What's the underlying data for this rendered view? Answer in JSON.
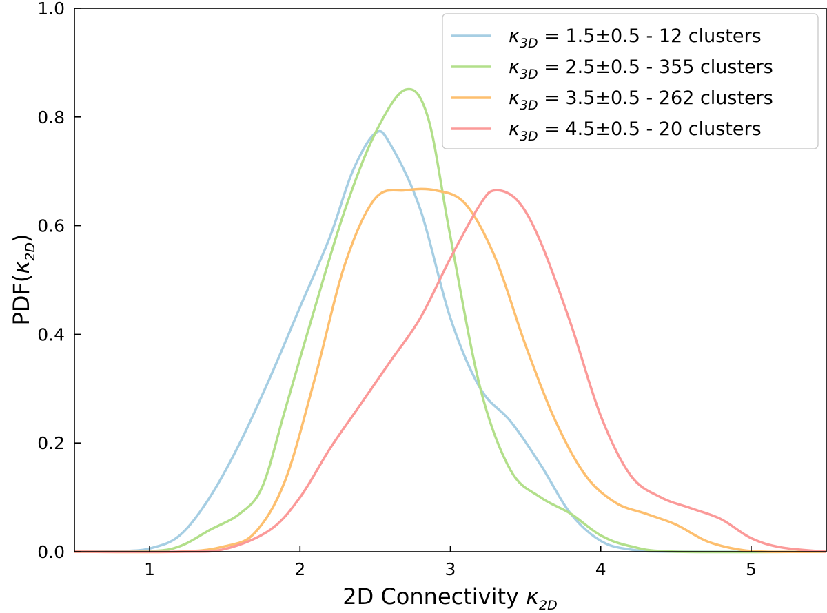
{
  "chart_data": {
    "type": "line",
    "xlabel": {
      "text": "2D Connectivity ",
      "symbol": "κ",
      "subscript": "2D"
    },
    "ylabel": {
      "text": "PDF(",
      "symbol": "κ",
      "subscript": "2D",
      "close": ")"
    },
    "xlim": [
      0.5,
      5.5
    ],
    "ylim": [
      0.0,
      1.0
    ],
    "x_ticks": [
      1,
      2,
      3,
      4,
      5
    ],
    "x_tick_labels": [
      "1",
      "2",
      "3",
      "4",
      "5"
    ],
    "y_ticks": [
      0.0,
      0.2,
      0.4,
      0.6,
      0.8,
      1.0
    ],
    "y_tick_labels": [
      "0.0",
      "0.2",
      "0.4",
      "0.6",
      "0.8",
      "1.0"
    ],
    "grid": false,
    "legend_position": "top-right",
    "series": [
      {
        "name": "κ3D = 1.5±0.5 - 12 clusters",
        "legend": {
          "symbol": "κ",
          "subscript": "3D",
          "text": " = 1.5±0.5 - 12 clusters"
        },
        "color": "#a6cee3",
        "points": [
          [
            0.5,
            0
          ],
          [
            0.8,
            0.001
          ],
          [
            1.0,
            0.006
          ],
          [
            1.2,
            0.03
          ],
          [
            1.4,
            0.1
          ],
          [
            1.6,
            0.2
          ],
          [
            1.8,
            0.32
          ],
          [
            2.0,
            0.45
          ],
          [
            2.2,
            0.58
          ],
          [
            2.35,
            0.7
          ],
          [
            2.5,
            0.77
          ],
          [
            2.6,
            0.75
          ],
          [
            2.8,
            0.63
          ],
          [
            3.0,
            0.43
          ],
          [
            3.2,
            0.3
          ],
          [
            3.4,
            0.24
          ],
          [
            3.6,
            0.16
          ],
          [
            3.8,
            0.07
          ],
          [
            4.0,
            0.02
          ],
          [
            4.2,
            0.004
          ],
          [
            4.5,
            0.0
          ],
          [
            5.5,
            0.0
          ]
        ]
      },
      {
        "name": "κ3D = 2.5±0.5 - 355 clusters",
        "legend": {
          "symbol": "κ",
          "subscript": "3D",
          "text": " = 2.5±0.5 - 355 clusters"
        },
        "color": "#b2df8a",
        "points": [
          [
            0.5,
            0
          ],
          [
            1.0,
            0.001
          ],
          [
            1.2,
            0.01
          ],
          [
            1.4,
            0.04
          ],
          [
            1.6,
            0.07
          ],
          [
            1.75,
            0.12
          ],
          [
            1.9,
            0.26
          ],
          [
            2.1,
            0.45
          ],
          [
            2.3,
            0.63
          ],
          [
            2.5,
            0.77
          ],
          [
            2.7,
            0.85
          ],
          [
            2.85,
            0.8
          ],
          [
            3.0,
            0.58
          ],
          [
            3.2,
            0.3
          ],
          [
            3.4,
            0.15
          ],
          [
            3.6,
            0.1
          ],
          [
            3.8,
            0.07
          ],
          [
            4.0,
            0.03
          ],
          [
            4.2,
            0.01
          ],
          [
            4.5,
            0.0
          ],
          [
            5.5,
            0.0
          ]
        ]
      },
      {
        "name": "κ3D = 3.5±0.5 - 262 clusters",
        "legend": {
          "symbol": "κ",
          "subscript": "3D",
          "text": " = 3.5±0.5 - 262 clusters"
        },
        "color": "#fdbf6f",
        "points": [
          [
            0.5,
            0
          ],
          [
            1.2,
            0.0
          ],
          [
            1.5,
            0.01
          ],
          [
            1.7,
            0.035
          ],
          [
            1.9,
            0.13
          ],
          [
            2.1,
            0.32
          ],
          [
            2.3,
            0.53
          ],
          [
            2.5,
            0.65
          ],
          [
            2.7,
            0.665
          ],
          [
            2.9,
            0.665
          ],
          [
            3.1,
            0.64
          ],
          [
            3.3,
            0.54
          ],
          [
            3.5,
            0.38
          ],
          [
            3.7,
            0.24
          ],
          [
            3.9,
            0.14
          ],
          [
            4.1,
            0.09
          ],
          [
            4.3,
            0.07
          ],
          [
            4.5,
            0.05
          ],
          [
            4.7,
            0.02
          ],
          [
            4.9,
            0.005
          ],
          [
            5.1,
            0.0
          ],
          [
            5.5,
            0.0
          ]
        ]
      },
      {
        "name": "κ3D = 4.5±0.5 - 20 clusters",
        "legend": {
          "symbol": "κ",
          "subscript": "3D",
          "text": " = 4.5±0.5 - 20 clusters"
        },
        "color": "#fb9a99",
        "points": [
          [
            0.5,
            0
          ],
          [
            1.2,
            0.0
          ],
          [
            1.5,
            0.005
          ],
          [
            1.8,
            0.04
          ],
          [
            2.0,
            0.1
          ],
          [
            2.2,
            0.19
          ],
          [
            2.4,
            0.27
          ],
          [
            2.6,
            0.35
          ],
          [
            2.8,
            0.43
          ],
          [
            3.0,
            0.54
          ],
          [
            3.2,
            0.64
          ],
          [
            3.3,
            0.665
          ],
          [
            3.45,
            0.645
          ],
          [
            3.6,
            0.57
          ],
          [
            3.8,
            0.42
          ],
          [
            4.0,
            0.25
          ],
          [
            4.2,
            0.14
          ],
          [
            4.4,
            0.1
          ],
          [
            4.6,
            0.08
          ],
          [
            4.8,
            0.06
          ],
          [
            5.0,
            0.025
          ],
          [
            5.2,
            0.008
          ],
          [
            5.5,
            0.0
          ]
        ]
      }
    ]
  }
}
